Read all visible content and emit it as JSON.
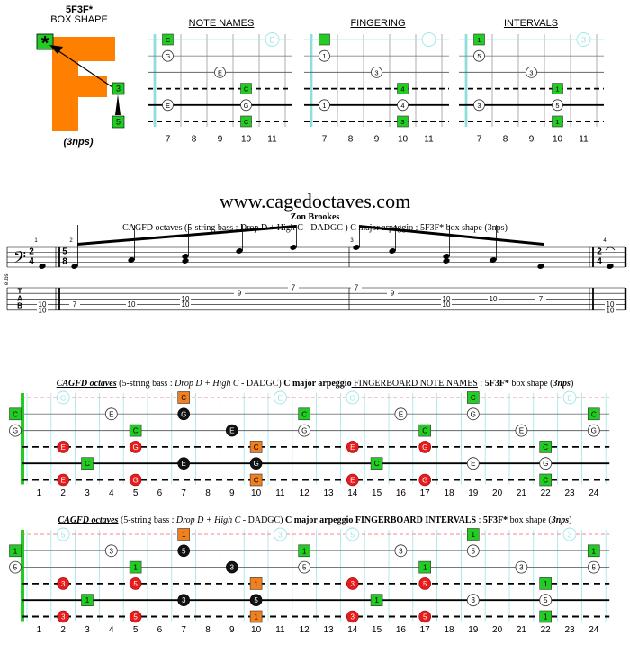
{
  "box": {
    "title": "5F3F*",
    "subtitle": "BOX SHAPE",
    "letter": "F",
    "star": "*",
    "nps": "(3nps)"
  },
  "colors": {
    "root": "#22cc22",
    "third": "#e81c1c",
    "fifth": "#f08020",
    "black": "#111111",
    "white": "#ffffff"
  },
  "small_diagrams": [
    {
      "title": "NOTE NAMES",
      "notes": [
        {
          "s": 0,
          "f": 7,
          "t": "C",
          "k": "root"
        },
        {
          "s": 0,
          "f": 11,
          "t": "E",
          "k": "ghost"
        },
        {
          "s": 1,
          "f": 7,
          "t": "G",
          "k": "white"
        },
        {
          "s": 2,
          "f": 9,
          "t": "E",
          "k": "white"
        },
        {
          "s": 3,
          "f": 10,
          "t": "C",
          "k": "root"
        },
        {
          "s": 4,
          "f": 7,
          "t": "E",
          "k": "white"
        },
        {
          "s": 4,
          "f": 10,
          "t": "G",
          "k": "white"
        },
        {
          "s": 5,
          "f": 10,
          "t": "C",
          "k": "root"
        }
      ]
    },
    {
      "title": "FINGERING",
      "notes": [
        {
          "s": 0,
          "f": 7,
          "t": "",
          "k": "root"
        },
        {
          "s": 0,
          "f": 11,
          "t": "",
          "k": "ghost"
        },
        {
          "s": 1,
          "f": 7,
          "t": "1",
          "k": "white"
        },
        {
          "s": 2,
          "f": 9,
          "t": "3",
          "k": "white"
        },
        {
          "s": 3,
          "f": 10,
          "t": "4",
          "k": "root"
        },
        {
          "s": 4,
          "f": 7,
          "t": "1",
          "k": "white"
        },
        {
          "s": 4,
          "f": 10,
          "t": "4",
          "k": "white"
        },
        {
          "s": 5,
          "f": 10,
          "t": "3",
          "k": "root"
        }
      ]
    },
    {
      "title": "INTERVALS",
      "notes": [
        {
          "s": 0,
          "f": 7,
          "t": "1",
          "k": "root"
        },
        {
          "s": 0,
          "f": 11,
          "t": "3",
          "k": "ghost"
        },
        {
          "s": 1,
          "f": 7,
          "t": "5",
          "k": "white"
        },
        {
          "s": 2,
          "f": 9,
          "t": "3",
          "k": "white"
        },
        {
          "s": 3,
          "f": 10,
          "t": "1",
          "k": "root"
        },
        {
          "s": 4,
          "f": 7,
          "t": "3",
          "k": "white"
        },
        {
          "s": 4,
          "f": 10,
          "t": "5",
          "k": "white"
        },
        {
          "s": 5,
          "f": 10,
          "t": "1",
          "k": "root"
        }
      ]
    }
  ],
  "small_fret_numbers": [
    "7",
    "8",
    "9",
    "10",
    "11"
  ],
  "site": "www.cagedoctaves.com",
  "author": "Zon Brookes",
  "subtitle": "CAGFD octaves (5-string bass : Drop D + High C - DADGC ) C major arpeggio : 5F3F* box shape (3nps)",
  "notation": {
    "clef": "𝄢",
    "timesigs": [
      {
        "top": "2",
        "bottom": "4"
      },
      {
        "top": "5",
        "bottom": "8"
      },
      {
        "top": "2",
        "bottom": "4"
      }
    ],
    "tab_label": [
      "T",
      "A",
      "B"
    ],
    "side_label": "el.bs.",
    "measure_numbers": [
      "1",
      "2",
      "3",
      "4"
    ],
    "tab_notes": [
      {
        "s": 3,
        "t": "10"
      },
      {
        "s": 4,
        "t": "10"
      },
      {
        "s": 3,
        "t": "7"
      },
      {
        "s": 3,
        "t": "10"
      },
      {
        "s": 2,
        "t": "10"
      },
      {
        "s": 3,
        "t": "10"
      },
      {
        "s": 1,
        "t": "9"
      },
      {
        "s": 0,
        "t": "7"
      },
      {
        "s": 0,
        "t": "7"
      },
      {
        "s": 1,
        "t": "9"
      },
      {
        "s": 2,
        "t": "10"
      },
      {
        "s": 3,
        "t": "10"
      },
      {
        "s": 2,
        "t": "10"
      },
      {
        "s": 2,
        "t": "7"
      },
      {
        "s": 3,
        "t": "10"
      },
      {
        "s": 4,
        "t": "10"
      }
    ]
  },
  "big_fretboards": [
    {
      "title_parts": [
        {
          "t": "CAGFD octaves",
          "st": "bui"
        },
        {
          "t": " (5-string bass : ",
          "st": ""
        },
        {
          "t": "Drop D + High C",
          "st": "i"
        },
        {
          "t": " - DADGC) ",
          "st": ""
        },
        {
          "t": "C major arpeggio",
          "st": "b"
        },
        {
          "t": " FINGERBOARD NOTE NAMES",
          "st": "u"
        },
        {
          "t": " : ",
          "st": ""
        },
        {
          "t": "5F3F*",
          "st": "b"
        },
        {
          "t": " box shape (",
          "st": ""
        },
        {
          "t": "3nps",
          "st": "bi"
        },
        {
          "t": ")",
          "st": ""
        }
      ],
      "notes": [
        {
          "s": 0,
          "f": 2,
          "t": "G",
          "k": "ghost"
        },
        {
          "s": 0,
          "f": 7,
          "t": "C",
          "k": "orange"
        },
        {
          "s": 0,
          "f": 11,
          "t": "E",
          "k": "ghost"
        },
        {
          "s": 0,
          "f": 14,
          "t": "G",
          "k": "ghost"
        },
        {
          "s": 0,
          "f": 19,
          "t": "C",
          "k": "root"
        },
        {
          "s": 0,
          "f": 23,
          "t": "E",
          "k": "ghost"
        },
        {
          "s": 1,
          "f": 0,
          "t": "C",
          "k": "root"
        },
        {
          "s": 1,
          "f": 4,
          "t": "E",
          "k": "white"
        },
        {
          "s": 1,
          "f": 7,
          "t": "G",
          "k": "black"
        },
        {
          "s": 1,
          "f": 12,
          "t": "C",
          "k": "root"
        },
        {
          "s": 1,
          "f": 16,
          "t": "E",
          "k": "white"
        },
        {
          "s": 1,
          "f": 19,
          "t": "G",
          "k": "white"
        },
        {
          "s": 1,
          "f": 24,
          "t": "C",
          "k": "root"
        },
        {
          "s": 2,
          "f": 0,
          "t": "G",
          "k": "white"
        },
        {
          "s": 2,
          "f": 5,
          "t": "C",
          "k": "root"
        },
        {
          "s": 2,
          "f": 9,
          "t": "E",
          "k": "black"
        },
        {
          "s": 2,
          "f": 12,
          "t": "G",
          "k": "white"
        },
        {
          "s": 2,
          "f": 17,
          "t": "C",
          "k": "root"
        },
        {
          "s": 2,
          "f": 21,
          "t": "E",
          "k": "white"
        },
        {
          "s": 2,
          "f": 24,
          "t": "G",
          "k": "white"
        },
        {
          "s": 3,
          "f": 2,
          "t": "E",
          "k": "red"
        },
        {
          "s": 3,
          "f": 5,
          "t": "G",
          "k": "red"
        },
        {
          "s": 3,
          "f": 10,
          "t": "C",
          "k": "orange"
        },
        {
          "s": 3,
          "f": 14,
          "t": "E",
          "k": "red"
        },
        {
          "s": 3,
          "f": 17,
          "t": "G",
          "k": "red"
        },
        {
          "s": 3,
          "f": 22,
          "t": "C",
          "k": "root"
        },
        {
          "s": 4,
          "f": 3,
          "t": "C",
          "k": "root"
        },
        {
          "s": 4,
          "f": 7,
          "t": "E",
          "k": "black"
        },
        {
          "s": 4,
          "f": 10,
          "t": "G",
          "k": "black"
        },
        {
          "s": 4,
          "f": 15,
          "t": "C",
          "k": "root"
        },
        {
          "s": 4,
          "f": 19,
          "t": "E",
          "k": "white"
        },
        {
          "s": 4,
          "f": 22,
          "t": "G",
          "k": "white"
        },
        {
          "s": 5,
          "f": 2,
          "t": "E",
          "k": "red"
        },
        {
          "s": 5,
          "f": 5,
          "t": "G",
          "k": "red"
        },
        {
          "s": 5,
          "f": 10,
          "t": "C",
          "k": "orange"
        },
        {
          "s": 5,
          "f": 14,
          "t": "E",
          "k": "red"
        },
        {
          "s": 5,
          "f": 17,
          "t": "G",
          "k": "red"
        },
        {
          "s": 5,
          "f": 22,
          "t": "C",
          "k": "root"
        }
      ]
    },
    {
      "title_parts": [
        {
          "t": "CAGFD octaves",
          "st": "bui"
        },
        {
          "t": " (5-string bass : ",
          "st": ""
        },
        {
          "t": "Drop D + High C",
          "st": "i"
        },
        {
          "t": " - DADGC) ",
          "st": ""
        },
        {
          "t": "C major arpeggio",
          "st": "b"
        },
        {
          "t": " FINGERBOARD INTERVALS",
          "st": "b"
        },
        {
          "t": " : ",
          "st": ""
        },
        {
          "t": "5F3F*",
          "st": "b"
        },
        {
          "t": " box shape (",
          "st": ""
        },
        {
          "t": "3nps",
          "st": "bi"
        },
        {
          "t": ")",
          "st": ""
        }
      ],
      "notes": [
        {
          "s": 0,
          "f": 2,
          "t": "5",
          "k": "ghost"
        },
        {
          "s": 0,
          "f": 7,
          "t": "1",
          "k": "orange"
        },
        {
          "s": 0,
          "f": 11,
          "t": "3",
          "k": "ghost"
        },
        {
          "s": 0,
          "f": 14,
          "t": "5",
          "k": "ghost"
        },
        {
          "s": 0,
          "f": 19,
          "t": "1",
          "k": "root"
        },
        {
          "s": 0,
          "f": 23,
          "t": "3",
          "k": "ghost"
        },
        {
          "s": 1,
          "f": 0,
          "t": "1",
          "k": "root"
        },
        {
          "s": 1,
          "f": 4,
          "t": "3",
          "k": "white"
        },
        {
          "s": 1,
          "f": 7,
          "t": "5",
          "k": "black"
        },
        {
          "s": 1,
          "f": 12,
          "t": "1",
          "k": "root"
        },
        {
          "s": 1,
          "f": 16,
          "t": "3",
          "k": "white"
        },
        {
          "s": 1,
          "f": 19,
          "t": "5",
          "k": "white"
        },
        {
          "s": 1,
          "f": 24,
          "t": "1",
          "k": "root"
        },
        {
          "s": 2,
          "f": 0,
          "t": "5",
          "k": "white"
        },
        {
          "s": 2,
          "f": 5,
          "t": "1",
          "k": "root"
        },
        {
          "s": 2,
          "f": 9,
          "t": "3",
          "k": "black"
        },
        {
          "s": 2,
          "f": 12,
          "t": "5",
          "k": "white"
        },
        {
          "s": 2,
          "f": 17,
          "t": "1",
          "k": "root"
        },
        {
          "s": 2,
          "f": 21,
          "t": "3",
          "k": "white"
        },
        {
          "s": 2,
          "f": 24,
          "t": "5",
          "k": "white"
        },
        {
          "s": 3,
          "f": 2,
          "t": "3",
          "k": "red"
        },
        {
          "s": 3,
          "f": 5,
          "t": "5",
          "k": "red"
        },
        {
          "s": 3,
          "f": 10,
          "t": "1",
          "k": "orange"
        },
        {
          "s": 3,
          "f": 14,
          "t": "3",
          "k": "red"
        },
        {
          "s": 3,
          "f": 17,
          "t": "5",
          "k": "red"
        },
        {
          "s": 3,
          "f": 22,
          "t": "1",
          "k": "root"
        },
        {
          "s": 4,
          "f": 3,
          "t": "1",
          "k": "root"
        },
        {
          "s": 4,
          "f": 7,
          "t": "3",
          "k": "black"
        },
        {
          "s": 4,
          "f": 10,
          "t": "5",
          "k": "black"
        },
        {
          "s": 4,
          "f": 15,
          "t": "1",
          "k": "root"
        },
        {
          "s": 4,
          "f": 19,
          "t": "3",
          "k": "white"
        },
        {
          "s": 4,
          "f": 22,
          "t": "5",
          "k": "white"
        },
        {
          "s": 5,
          "f": 2,
          "t": "3",
          "k": "red"
        },
        {
          "s": 5,
          "f": 5,
          "t": "5",
          "k": "red"
        },
        {
          "s": 5,
          "f": 10,
          "t": "1",
          "k": "orange"
        },
        {
          "s": 5,
          "f": 14,
          "t": "3",
          "k": "red"
        },
        {
          "s": 5,
          "f": 17,
          "t": "5",
          "k": "red"
        },
        {
          "s": 5,
          "f": 22,
          "t": "1",
          "k": "root"
        }
      ]
    }
  ],
  "big_fret_numbers": [
    "1",
    "2",
    "3",
    "4",
    "5",
    "6",
    "7",
    "8",
    "9",
    "10",
    "11",
    "12",
    "13",
    "14",
    "15",
    "16",
    "17",
    "18",
    "19",
    "20",
    "21",
    "22",
    "23",
    "24"
  ]
}
